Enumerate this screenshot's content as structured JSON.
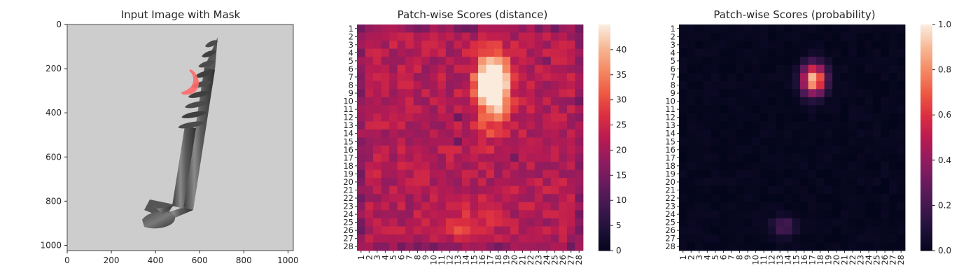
{
  "chart_data": [
    {
      "type": "image",
      "title": "Input Image with Mask",
      "xlim": [
        0,
        1024
      ],
      "ylim": [
        1024,
        0
      ],
      "xticks": [
        0,
        200,
        400,
        600,
        800,
        1000
      ],
      "yticks": [
        0,
        200,
        400,
        600,
        800,
        1000
      ],
      "xtick_labels": [
        "0",
        "200",
        "400",
        "600",
        "800",
        "1000"
      ],
      "ytick_labels": [
        "0",
        "200",
        "400",
        "600",
        "800",
        "1000"
      ],
      "image_content": "grayscale photo of a screw on light gray background with a red mask region on one thread",
      "background_color": "#cdcdcd",
      "mask_color": "#ff6a6a",
      "mask_region": {
        "x_range": [
          510,
          570
        ],
        "y_range": [
          190,
          330
        ]
      }
    },
    {
      "type": "heatmap",
      "title": "Patch-wise Scores (distance)",
      "rows": 28,
      "cols": 28,
      "row_labels": [
        "1",
        "2",
        "3",
        "4",
        "5",
        "6",
        "7",
        "8",
        "9",
        "10",
        "11",
        "12",
        "13",
        "14",
        "15",
        "16",
        "17",
        "18",
        "19",
        "20",
        "21",
        "22",
        "23",
        "24",
        "25",
        "26",
        "27",
        "28"
      ],
      "col_labels": [
        "1",
        "2",
        "3",
        "4",
        "5",
        "6",
        "7",
        "8",
        "9",
        "10",
        "11",
        "12",
        "13",
        "14",
        "15",
        "16",
        "17",
        "18",
        "19",
        "20",
        "21",
        "22",
        "23",
        "24",
        "25",
        "26",
        "27",
        "28"
      ],
      "colormap": "rocket",
      "vmin": 0,
      "vmax": 45,
      "colorbar_ticks": [
        0,
        5,
        10,
        15,
        20,
        25,
        30,
        35,
        40
      ],
      "colorbar_tick_labels": [
        "0",
        "5",
        "10",
        "15",
        "20",
        "25",
        "30",
        "35",
        "40"
      ],
      "baseline": 22,
      "hotspots": [
        {
          "row": 7.5,
          "col": 17.3,
          "peak": 45,
          "sigma_r": 2.2,
          "sigma_c": 1.3
        },
        {
          "row": 11.5,
          "col": 17.3,
          "peak": 10,
          "sigma_r": 2.5,
          "sigma_c": 1.5
        },
        {
          "row": 25.5,
          "col": 14.5,
          "peak": 8,
          "sigma_r": 1.5,
          "sigma_c": 2.0
        }
      ],
      "low_border_value": 18,
      "low_spots": [
        {
          "row": 12,
          "col": 13,
          "value": 14
        },
        {
          "row": 15,
          "col": 13,
          "value": 14
        },
        {
          "row": 5,
          "col": 24,
          "value": 16
        },
        {
          "row": 17,
          "col": 20,
          "value": 15
        }
      ]
    },
    {
      "type": "heatmap",
      "title": "Patch-wise Scores (probability)",
      "rows": 28,
      "cols": 28,
      "row_labels": [
        "1",
        "2",
        "3",
        "4",
        "5",
        "6",
        "7",
        "8",
        "9",
        "10",
        "11",
        "12",
        "13",
        "14",
        "15",
        "16",
        "17",
        "18",
        "19",
        "20",
        "21",
        "22",
        "23",
        "24",
        "25",
        "26",
        "27",
        "28"
      ],
      "col_labels": [
        "1",
        "2",
        "3",
        "4",
        "5",
        "6",
        "7",
        "8",
        "9",
        "10",
        "11",
        "12",
        "13",
        "14",
        "15",
        "16",
        "17",
        "18",
        "19",
        "20",
        "21",
        "22",
        "23",
        "24",
        "25",
        "26",
        "27",
        "28"
      ],
      "colormap": "rocket",
      "vmin": 0.0,
      "vmax": 1.0,
      "colorbar_ticks": [
        0.0,
        0.2,
        0.4,
        0.6,
        0.8,
        1.0
      ],
      "colorbar_tick_labels": [
        "0.0",
        "0.2",
        "0.4",
        "0.6",
        "0.8",
        "1.0"
      ],
      "baseline": 0.0,
      "hotspots": [
        {
          "row": 7.3,
          "col": 17.2,
          "peak": 0.72,
          "sigma_r": 1.3,
          "sigma_c": 1.0
        },
        {
          "row": 25.5,
          "col": 13.5,
          "peak": 0.18,
          "sigma_r": 0.8,
          "sigma_c": 1.0
        }
      ]
    }
  ]
}
